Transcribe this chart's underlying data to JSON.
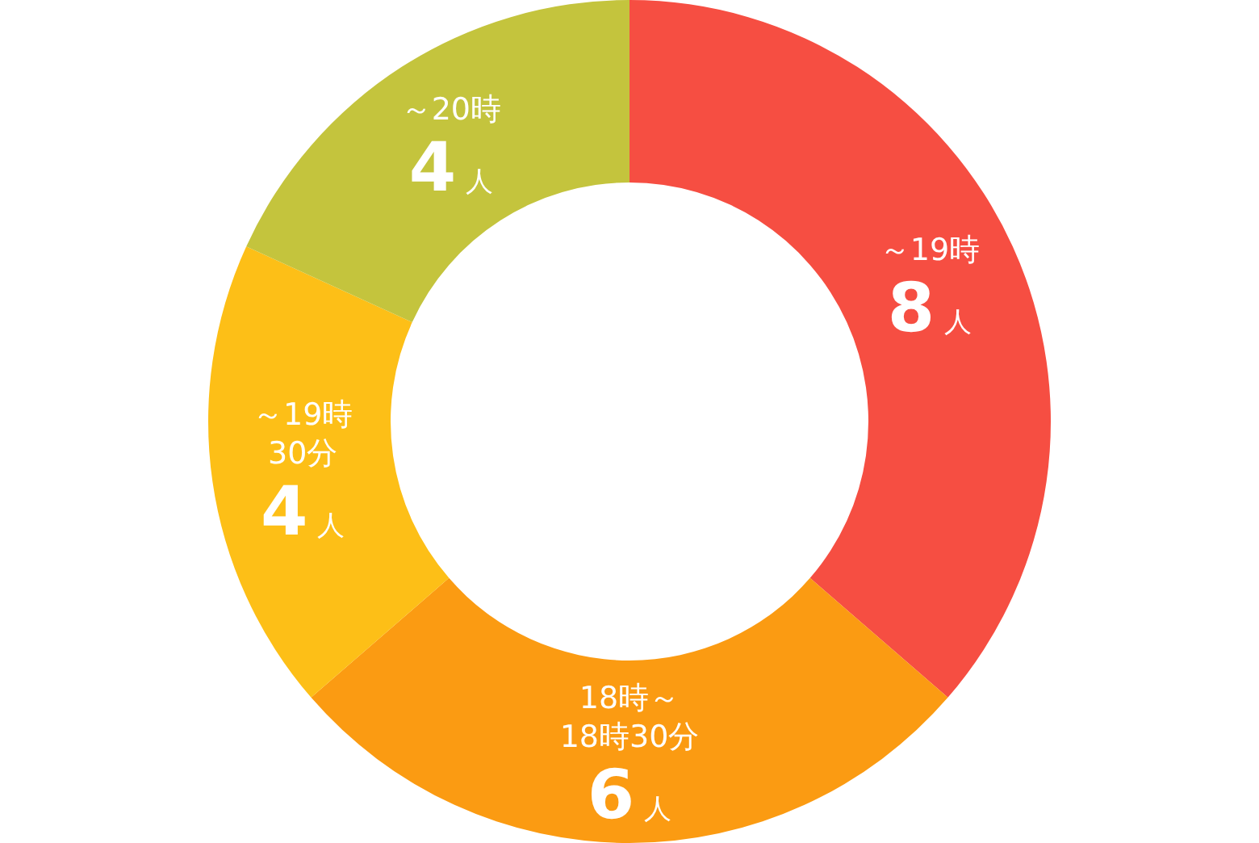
{
  "chart_data": {
    "type": "donut",
    "categories": [
      "～19時",
      "18時～\n18時30分",
      "～19時\n30分",
      "～20時"
    ],
    "values": [
      8,
      6,
      4,
      4
    ],
    "value_labels": [
      "8人",
      "6人",
      "4人",
      "4人"
    ],
    "colors": [
      "#f64e42",
      "#fb9b12",
      "#fdbf17",
      "#c4c43d"
    ]
  }
}
